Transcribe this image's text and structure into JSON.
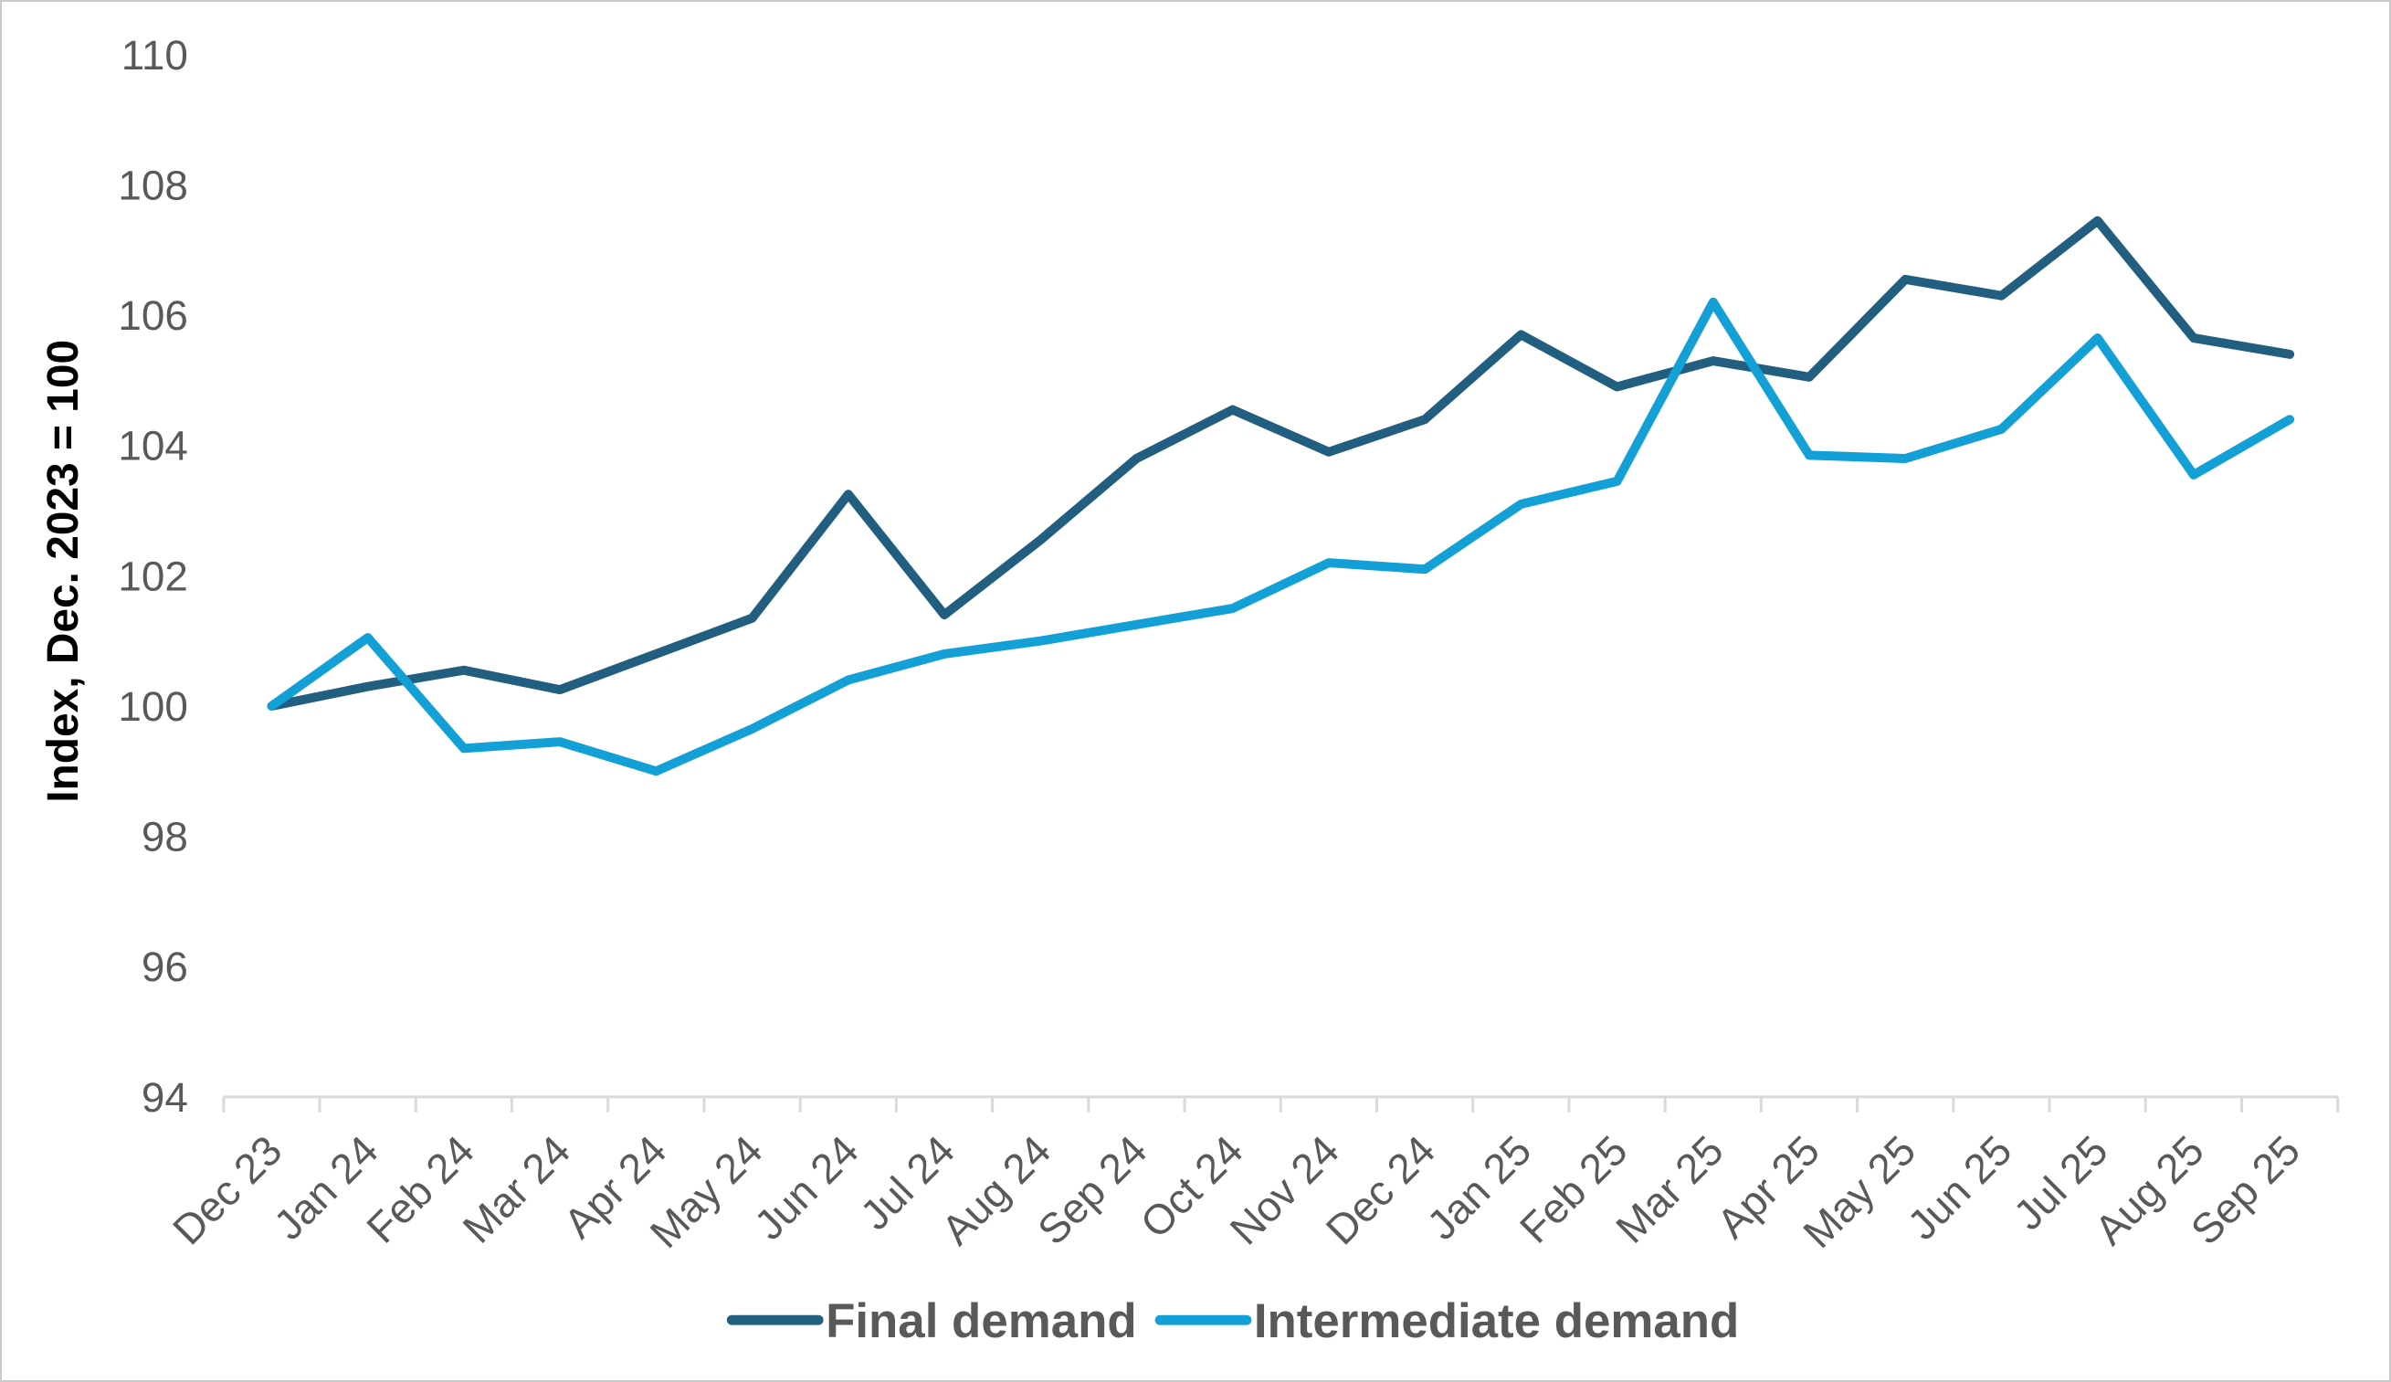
{
  "page": {
    "background": "#ffffff",
    "border_color": "#c9c9c9"
  },
  "chart_data": {
    "type": "line",
    "title": "",
    "xlabel": "",
    "ylabel": "Index, Dec. 2023 = 100",
    "ylim": [
      94,
      110
    ],
    "yticks": [
      94,
      96,
      98,
      100,
      102,
      104,
      106,
      108,
      110
    ],
    "grid": false,
    "legend_position": "bottom-center",
    "x_tick_rotation": 45,
    "axis_color": "#d9d9d9",
    "tick_label_color": "#595959",
    "axis_title_color": "#3f3f3f",
    "legend_text_color": "#595959",
    "categories": [
      "Dec 23",
      "Jan 24",
      "Feb 24",
      "Mar 24",
      "Apr 24",
      "May 24",
      "Jun 24",
      "Jul 24",
      "Aug 24",
      "Sep 24",
      "Oct 24",
      "Nov 24",
      "Dec 24",
      "Jan 25",
      "Feb 25",
      "Mar 25",
      "Apr 25",
      "May 25",
      "Jun 25",
      "Jul 25",
      "Aug 25",
      "Sep 25"
    ],
    "series": [
      {
        "name": "Final demand",
        "color": "#215e80",
        "values": [
          100,
          100.3,
          100.55,
          100.25,
          100.8,
          101.35,
          103.25,
          101.4,
          102.55,
          103.8,
          104.55,
          103.9,
          104.4,
          105.7,
          104.9,
          105.3,
          105.05,
          106.55,
          106.3,
          107.45,
          105.65,
          105.4
        ]
      },
      {
        "name": "Intermediate demand",
        "color": "#12a0d6",
        "values": [
          100,
          101.05,
          99.35,
          99.45,
          99,
          99.65,
          100.4,
          100.8,
          101,
          101.25,
          101.5,
          102.2,
          102.1,
          103.1,
          103.45,
          106.2,
          103.85,
          103.8,
          104.25,
          105.65,
          103.55,
          104.4
        ]
      }
    ]
  }
}
